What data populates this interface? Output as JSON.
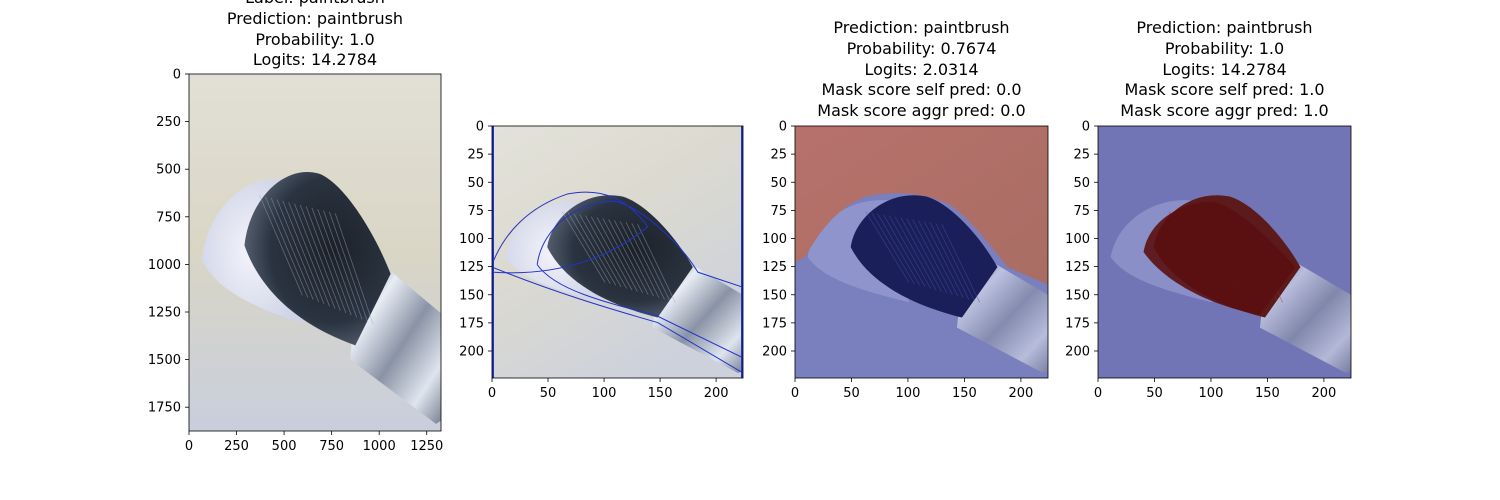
{
  "chart_data": [
    {
      "type": "image",
      "title_lines": [
        "Label: paintbrush",
        "Prediction: paintbrush",
        "Probability: 1.0",
        "Logits: 14.2784"
      ],
      "xticks": [
        0,
        250,
        500,
        750,
        1000,
        1250
      ],
      "yticks": [
        0,
        250,
        500,
        750,
        1000,
        1250,
        1500,
        1750
      ],
      "xlim": [
        0,
        1325
      ],
      "ylim": [
        1875,
        0
      ],
      "overlay": "none"
    },
    {
      "type": "image",
      "title_lines": [],
      "xticks": [
        0,
        50,
        100,
        150,
        200
      ],
      "yticks": [
        0,
        25,
        50,
        75,
        100,
        125,
        150,
        175,
        200
      ],
      "xlim": [
        0,
        224
      ],
      "ylim": [
        224,
        0
      ],
      "overlay": "contours"
    },
    {
      "type": "image",
      "title_lines": [
        "Prediction: paintbrush",
        "Probability: 0.7674",
        "Logits: 2.0314",
        "Mask score self pred: 0.0",
        "Mask score aggr pred: 0.0"
      ],
      "xticks": [
        0,
        50,
        100,
        150,
        200
      ],
      "yticks": [
        0,
        25,
        50,
        75,
        100,
        125,
        150,
        175,
        200
      ],
      "xlim": [
        0,
        224
      ],
      "ylim": [
        224,
        0
      ],
      "overlay": "background-mask"
    },
    {
      "type": "image",
      "title_lines": [
        "Prediction: paintbrush",
        "Probability: 1.0",
        "Logits: 14.2784",
        "Mask score self pred: 1.0",
        "Mask score aggr pred: 1.0"
      ],
      "xticks": [
        0,
        50,
        100,
        150,
        200
      ],
      "yticks": [
        0,
        25,
        50,
        75,
        100,
        125,
        150,
        175,
        200
      ],
      "xlim": [
        0,
        224
      ],
      "ylim": [
        224,
        0
      ],
      "overlay": "bristle-mask"
    }
  ]
}
